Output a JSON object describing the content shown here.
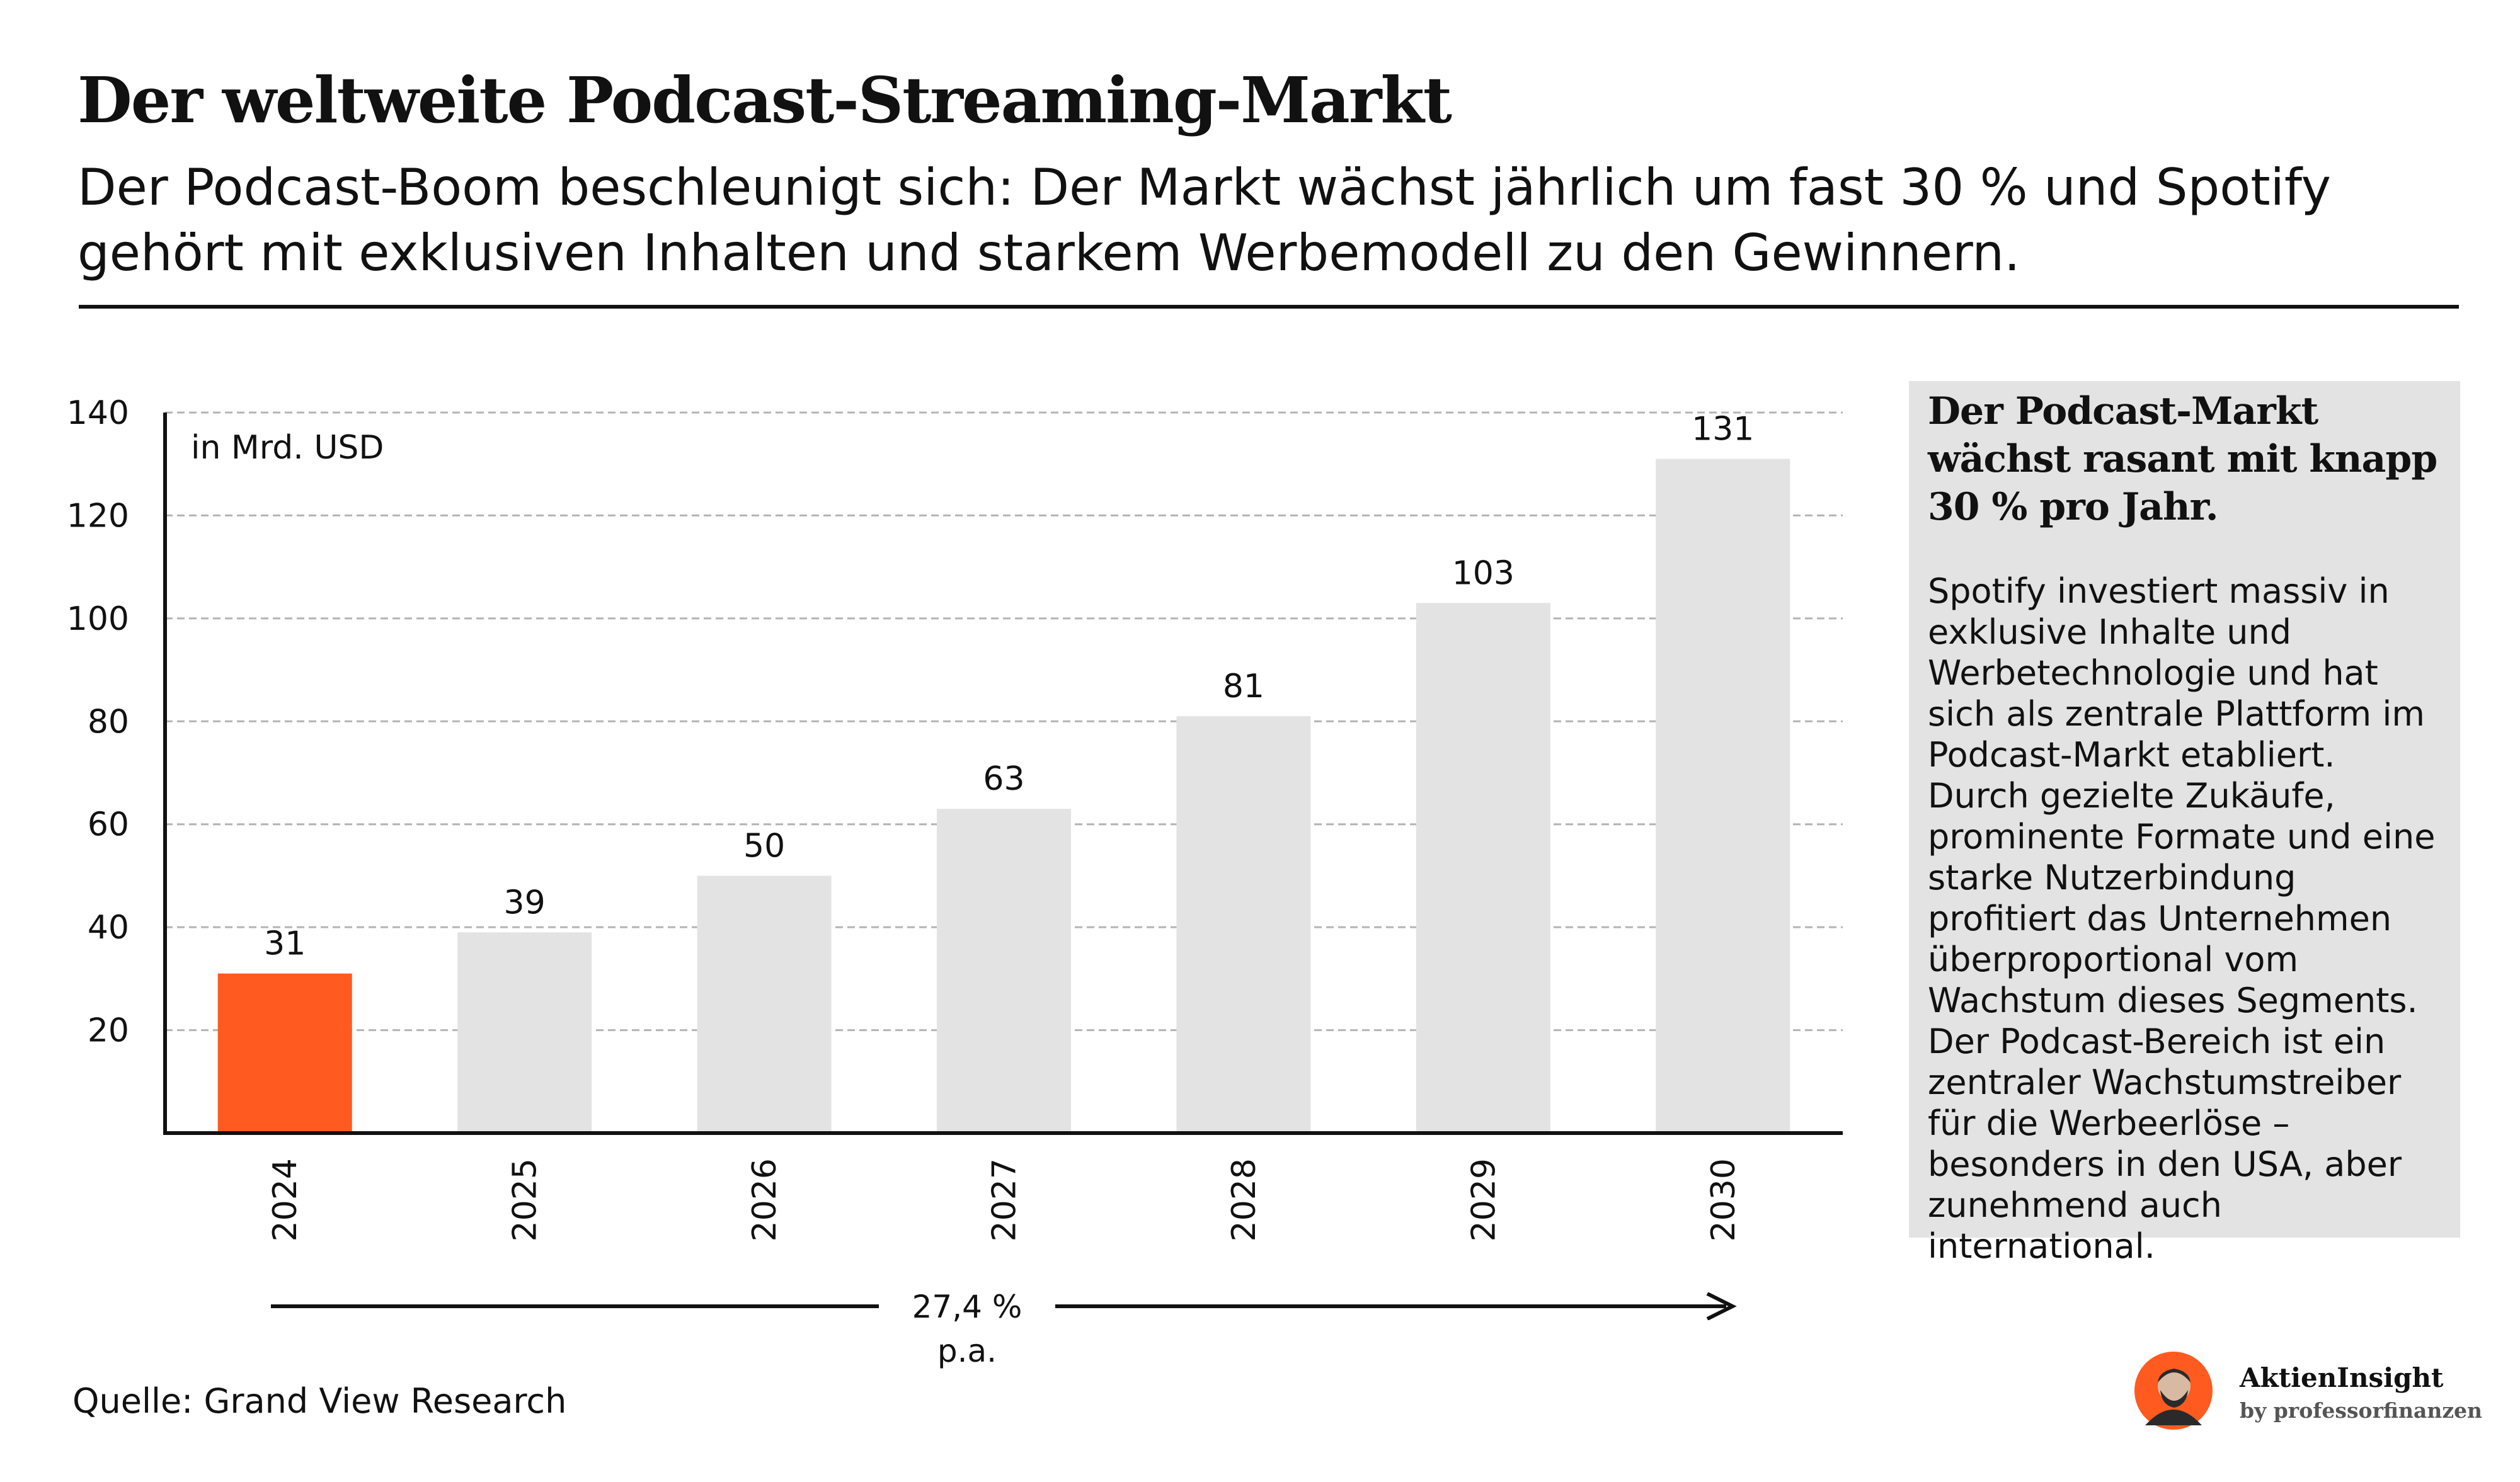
{
  "header": {
    "title": "Der weltweite Podcast-Streaming-Markt",
    "subtitle": "Der Podcast-Boom beschleunigt sich: Der Markt wächst jährlich um fast 30 % und Spotify gehört mit exklusiven Inhalten und starkem Werbemodell zu den Gewinnern."
  },
  "chart_data": {
    "type": "bar",
    "categories": [
      "2024",
      "2025",
      "2026",
      "2027",
      "2028",
      "2029",
      "2030"
    ],
    "values": [
      31,
      39,
      50,
      63,
      81,
      103,
      131
    ],
    "unit_label": "in Mrd. USD",
    "ylim": [
      0,
      140
    ],
    "yticks": [
      20,
      40,
      60,
      80,
      100,
      120,
      140
    ],
    "grid": true,
    "highlight_index": 0,
    "colors": {
      "highlight": "#ff5a1f",
      "bar": "#e3e3e3",
      "grid": "#b4b4b4",
      "axis": "#111111"
    },
    "growth_label": "27,4 % p.a."
  },
  "sidebar": {
    "headline": "Der Podcast-Markt wächst rasant mit knapp 30 % pro Jahr.",
    "body": "Spotify investiert massiv in exklusive Inhalte und Werbetechnologie und hat sich als zentrale Plattform im Podcast-Markt etabliert. Durch gezielte Zukäufe, prominente Formate und eine starke Nutzerbindung profitiert das Unternehmen überproportional vom Wachstum dieses Segments. Der Podcast-Bereich ist ein zentraler Wachstumstreiber für die Werbeerlöse – besonders in den USA, aber zunehmend auch international."
  },
  "footer": {
    "source": "Quelle: Grand View Research",
    "brand": "AktienInsight",
    "brand_sub": "by professorfinanzen",
    "logo_icon": "avatar-icon"
  }
}
